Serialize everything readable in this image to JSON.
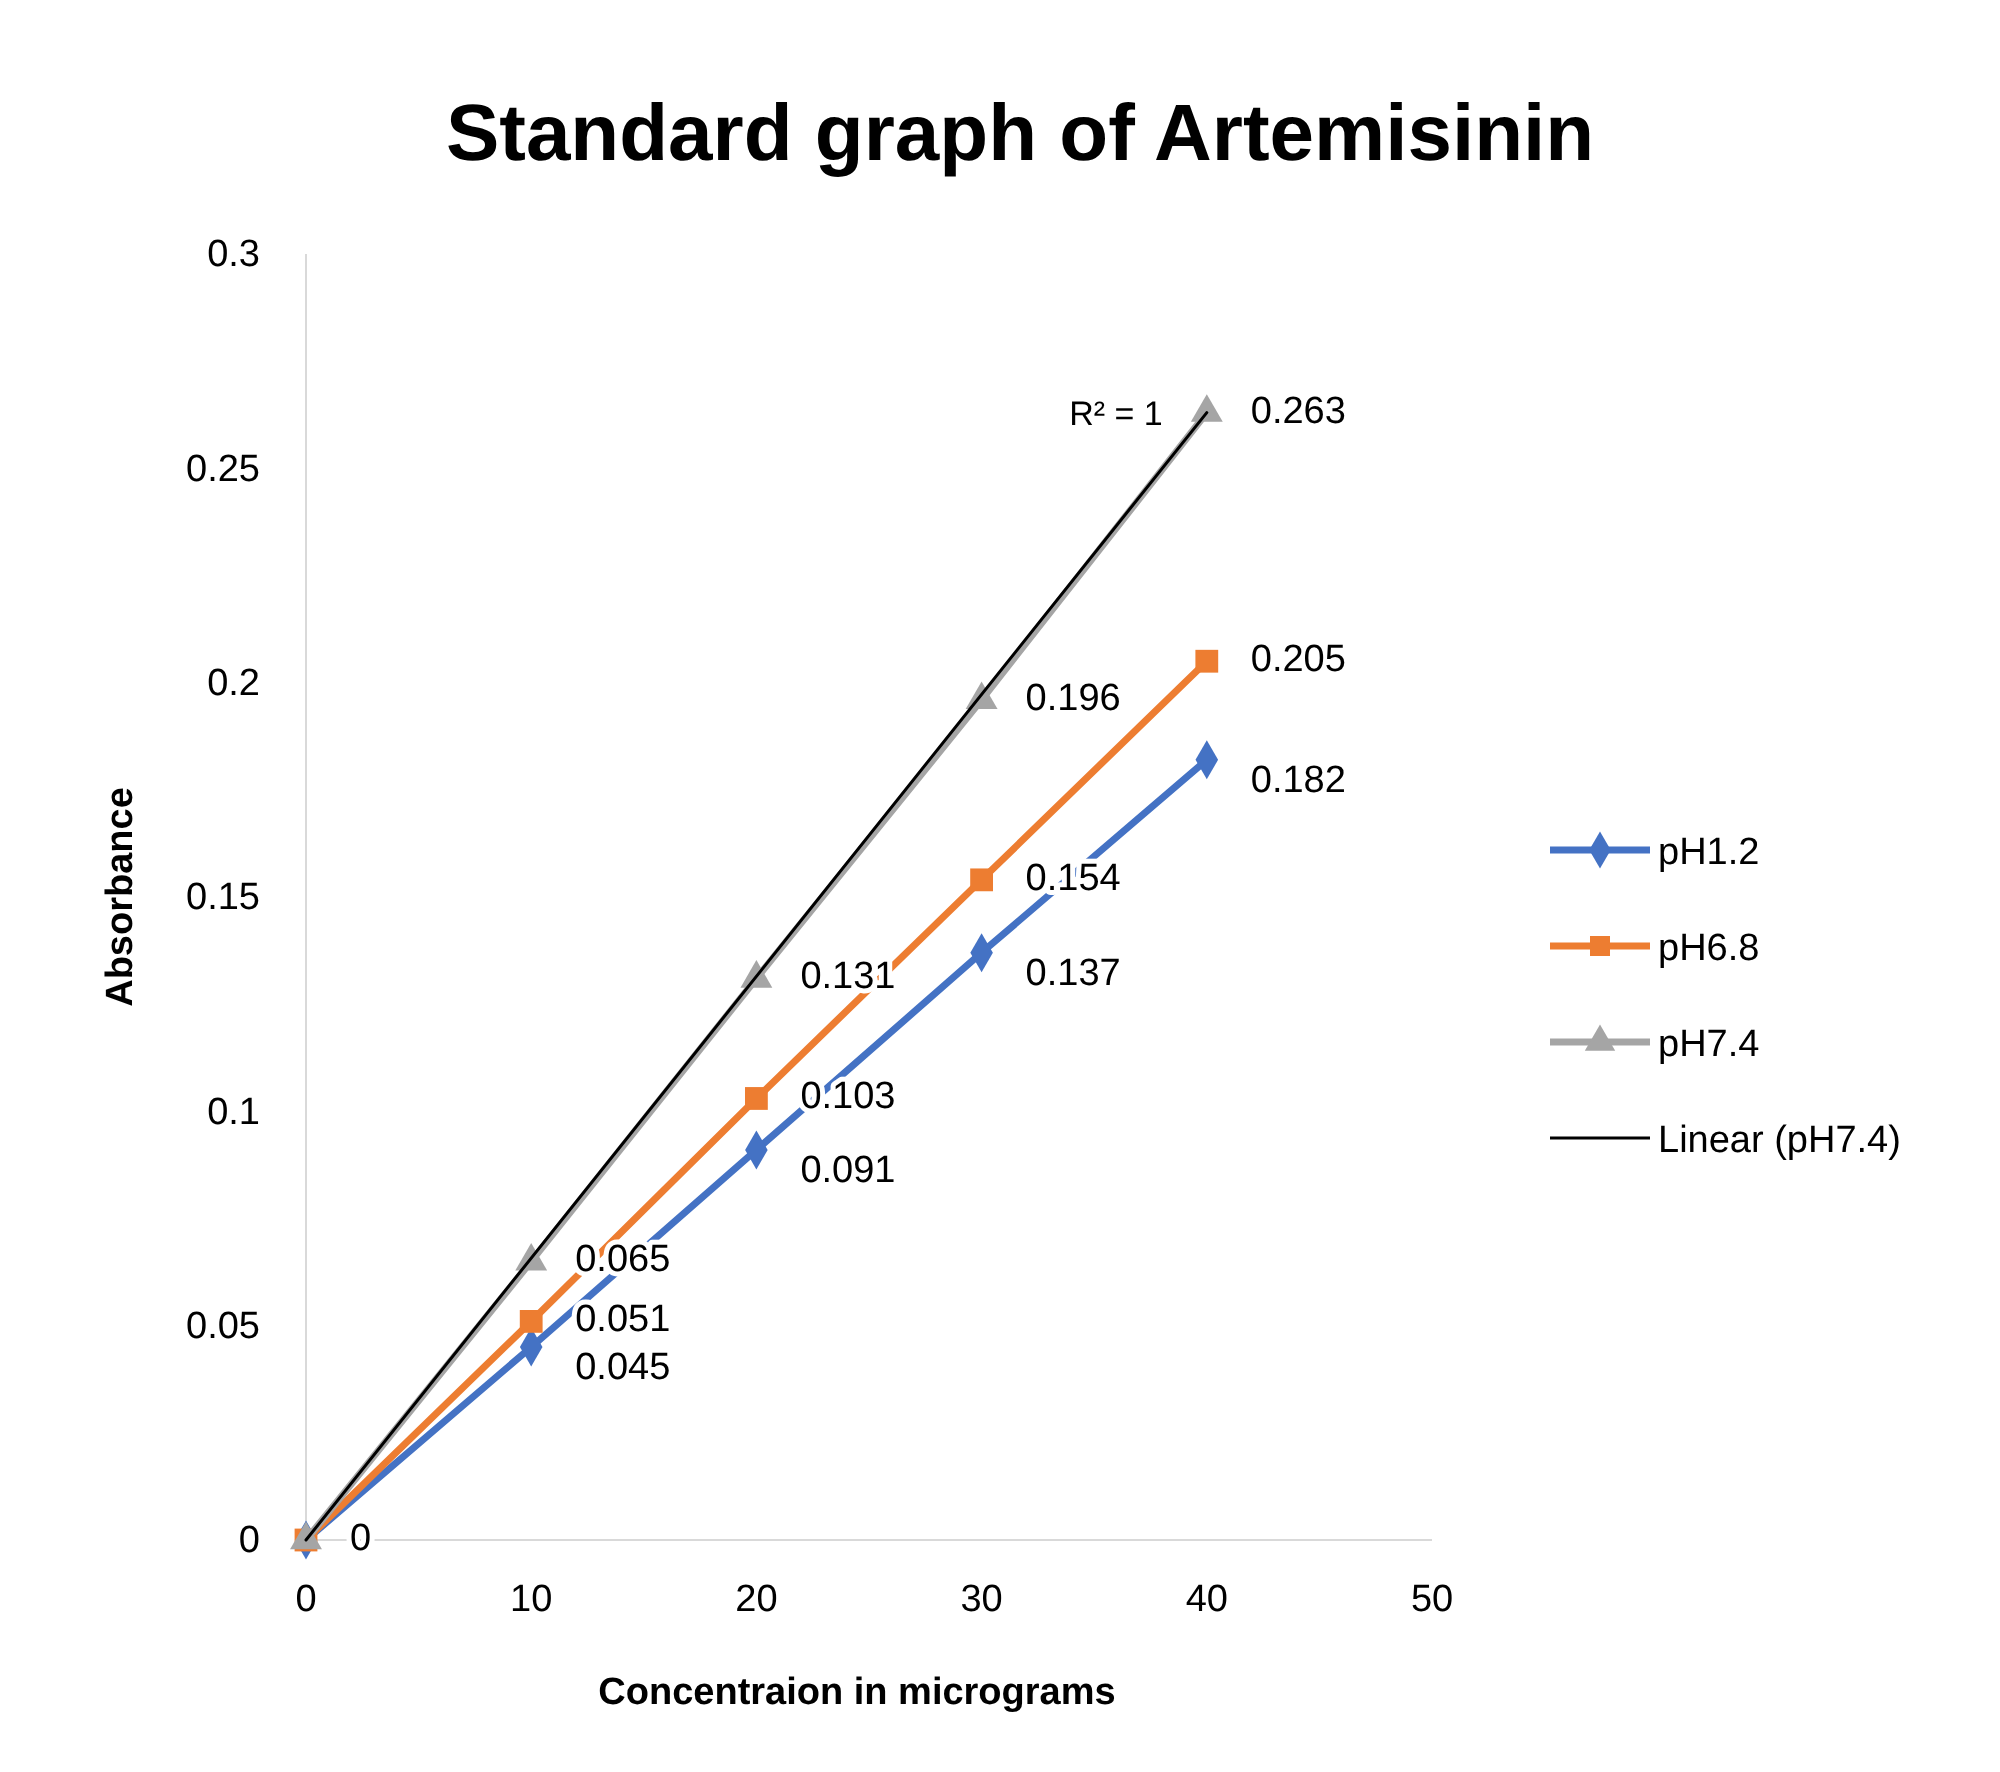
{
  "chart_data": {
    "type": "line",
    "title": "Standard graph of Artemisinin",
    "xlabel": "Concentraion in micrograms",
    "ylabel": "Absorbance",
    "x": [
      0,
      10,
      20,
      30,
      40
    ],
    "series": [
      {
        "name": "pH1.2",
        "color": "#4472c4",
        "marker": "diamond",
        "values": [
          0,
          0.045,
          0.091,
          0.137,
          0.182
        ],
        "value_labels": [
          null,
          "0.045",
          "0.091",
          "0.137",
          "0.182"
        ]
      },
      {
        "name": "pH6.8",
        "color": "#ed7d31",
        "marker": "square",
        "values": [
          0,
          0.051,
          0.103,
          0.154,
          0.205
        ],
        "value_labels": [
          null,
          "0.051",
          "0.103",
          "0.154",
          "0.205"
        ]
      },
      {
        "name": "pH7.4",
        "color": "#a5a5a5",
        "marker": "triangle",
        "values": [
          0,
          0.065,
          0.131,
          0.196,
          0.263
        ],
        "value_labels": [
          "0",
          "0.065",
          "0.131",
          "0.196",
          "0.263"
        ]
      },
      {
        "name": "Linear (pH7.4)",
        "color": "#000000",
        "marker": "none",
        "x": [
          0,
          40
        ],
        "values": [
          0,
          0.263
        ]
      }
    ],
    "annotations": [
      "R² = 1"
    ],
    "xlim": [
      0,
      50
    ],
    "xticks": [
      0,
      10,
      20,
      30,
      40,
      50
    ],
    "ylim": [
      0,
      0.3
    ],
    "yticks": [
      0,
      0.05,
      0.1,
      0.15,
      0.2,
      0.25,
      0.3
    ],
    "grid": false,
    "legend": "right"
  }
}
